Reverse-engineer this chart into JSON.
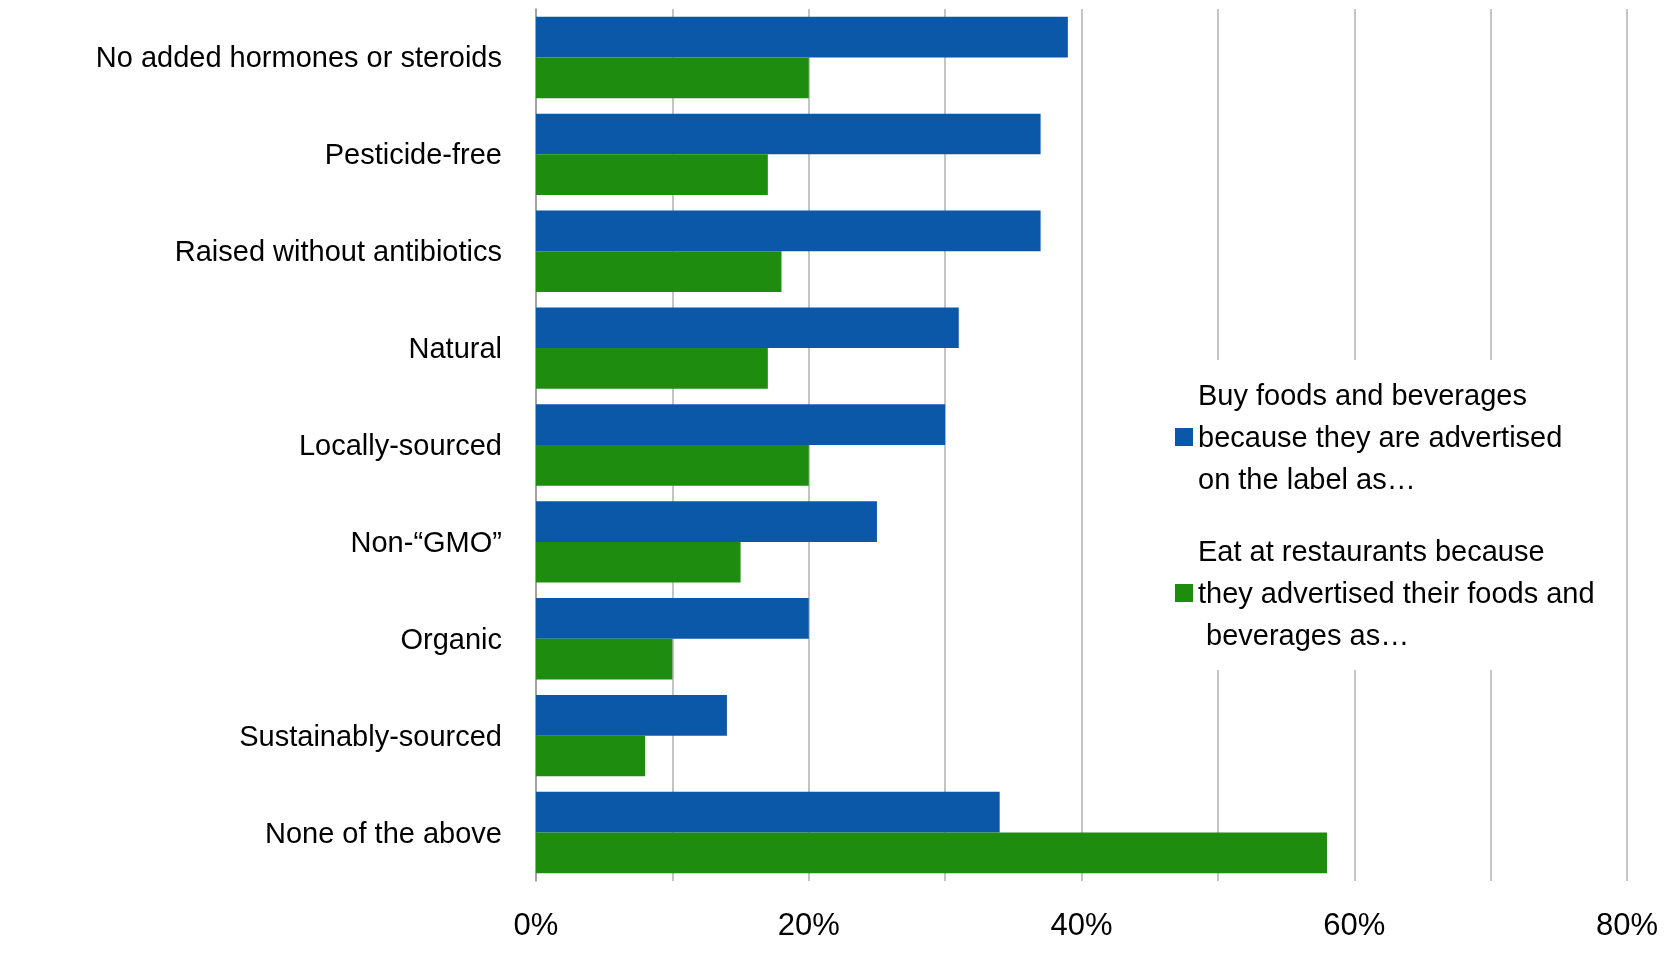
{
  "chart_data": {
    "type": "bar",
    "orientation": "horizontal",
    "categories": [
      "No added hormones or steroids",
      "Pesticide-free",
      "Raised without antibiotics",
      "Natural",
      "Locally-sourced",
      "Non-“GMO”",
      "Organic",
      "Sustainably-sourced",
      "None of the above"
    ],
    "series": [
      {
        "name": "Buy foods and beverages because they are advertised on the label as…",
        "color": "#0b57a8",
        "values": [
          39,
          37,
          37,
          31,
          30,
          25,
          20,
          14,
          34
        ]
      },
      {
        "name": "Eat at restaurants because they advertised their foods and beverages as…",
        "color": "#1e8c0f",
        "values": [
          20,
          17,
          18,
          17,
          20,
          15,
          10,
          8,
          58
        ]
      }
    ],
    "xlim": [
      0,
      80
    ],
    "xticks": [
      {
        "value": 0,
        "label": "0%"
      },
      {
        "value": 10,
        "label": null
      },
      {
        "value": 20,
        "label": "20%"
      },
      {
        "value": 30,
        "label": null
      },
      {
        "value": 40,
        "label": "40%"
      },
      {
        "value": 50,
        "label": null
      },
      {
        "value": 60,
        "label": "60%"
      },
      {
        "value": 70,
        "label": null
      },
      {
        "value": 80,
        "label": "80%"
      }
    ],
    "grid": "x",
    "legend": "right"
  }
}
